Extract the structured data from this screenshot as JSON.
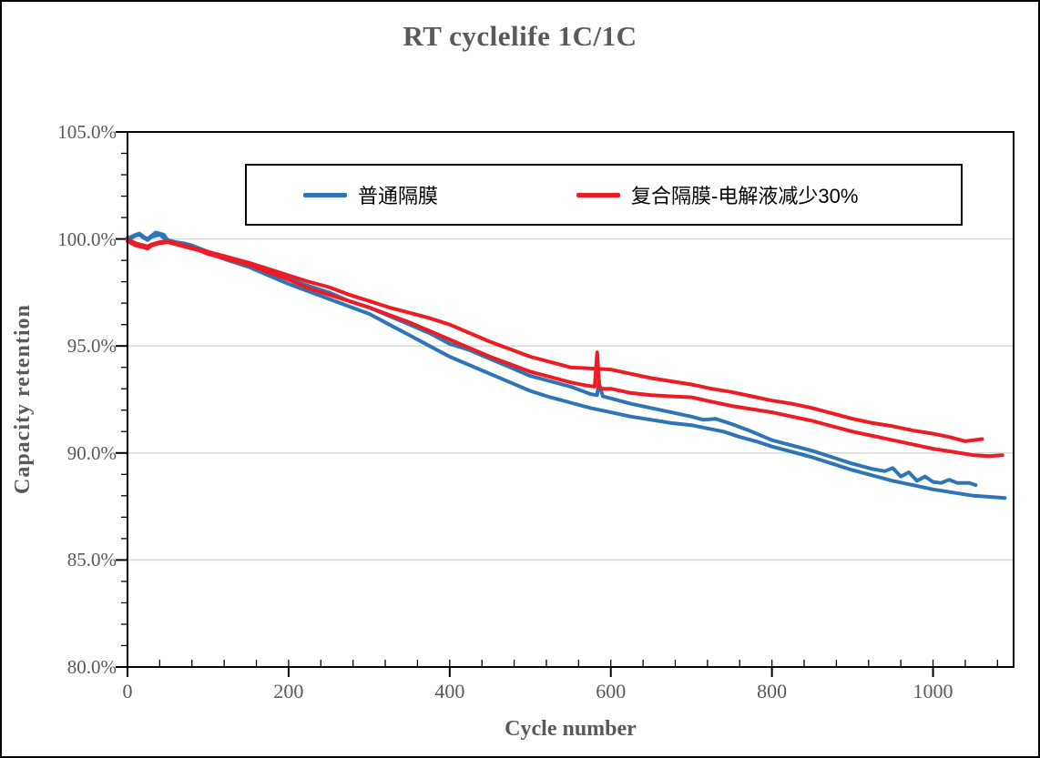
{
  "chart_data": {
    "type": "line",
    "title": "RT cyclelife 1C/1C",
    "xlabel": "Cycle number",
    "ylabel": "Capacity retention",
    "xlim": [
      0,
      1100
    ],
    "ylim": [
      80,
      105
    ],
    "x_major_ticks": [
      0,
      200,
      400,
      600,
      800,
      1000
    ],
    "x_tick_labels": [
      "0",
      "200",
      "400",
      "600",
      "800",
      "1000"
    ],
    "x_minor_step": 40,
    "y_major_ticks": [
      80,
      85,
      90,
      95,
      100,
      105
    ],
    "y_tick_labels": [
      "80.0%",
      "85.0%",
      "90.0%",
      "95.0%",
      "100.0%",
      "105.0%"
    ],
    "y_minor_step": 1,
    "grid": "horizontal-major-only",
    "gridline_color": "#d9d9d9",
    "axis_color": "#000000",
    "text_color": "#595959",
    "legend": {
      "position": "top-inside",
      "entries": [
        {
          "label": "普通隔膜",
          "color": "#2e75b6"
        },
        {
          "label": "复合隔膜-电解液减少30%",
          "color": "#ed1c24"
        }
      ]
    },
    "series": [
      {
        "id": "putong-gemo-cell1",
        "legend": "普通隔膜",
        "color": "#2e75b6",
        "x": [
          0,
          5,
          10,
          15,
          20,
          25,
          30,
          35,
          40,
          45,
          50,
          60,
          70,
          80,
          90,
          100,
          125,
          150,
          175,
          200,
          225,
          250,
          275,
          300,
          325,
          350,
          375,
          400,
          425,
          450,
          475,
          500,
          525,
          550,
          575,
          583,
          585,
          590,
          600,
          625,
          650,
          675,
          700,
          715,
          730,
          750,
          775,
          800,
          825,
          850,
          875,
          900,
          925,
          940,
          950,
          960,
          970,
          980,
          990,
          1000,
          1010,
          1020,
          1030,
          1045,
          1053
        ],
        "y": [
          100.05,
          100.1,
          100.2,
          100.25,
          100.1,
          100.0,
          100.15,
          100.3,
          100.25,
          100.2,
          99.95,
          99.85,
          99.8,
          99.7,
          99.55,
          99.4,
          99.1,
          98.8,
          98.5,
          98.15,
          97.8,
          97.5,
          97.1,
          96.8,
          96.4,
          96.0,
          95.6,
          95.1,
          94.8,
          94.4,
          94.0,
          93.6,
          93.35,
          93.1,
          92.75,
          92.7,
          93.3,
          92.65,
          92.55,
          92.3,
          92.1,
          91.9,
          91.7,
          91.55,
          91.6,
          91.35,
          91.0,
          90.6,
          90.35,
          90.1,
          89.8,
          89.5,
          89.25,
          89.15,
          89.3,
          88.9,
          89.1,
          88.7,
          88.9,
          88.65,
          88.6,
          88.75,
          88.6,
          88.6,
          88.5
        ]
      },
      {
        "id": "putong-gemo-cell2",
        "legend": "普通隔膜",
        "color": "#2e75b6",
        "x": [
          0,
          5,
          10,
          15,
          20,
          25,
          30,
          40,
          50,
          60,
          70,
          80,
          90,
          100,
          125,
          150,
          175,
          200,
          225,
          250,
          275,
          300,
          325,
          350,
          375,
          400,
          425,
          450,
          475,
          500,
          525,
          550,
          575,
          600,
          625,
          650,
          675,
          700,
          720,
          740,
          760,
          780,
          800,
          825,
          850,
          875,
          900,
          925,
          950,
          975,
          1000,
          1025,
          1050,
          1070,
          1089
        ],
        "y": [
          100.0,
          100.05,
          100.15,
          100.2,
          100.05,
          99.95,
          100.1,
          100.2,
          99.9,
          99.8,
          99.75,
          99.65,
          99.5,
          99.35,
          99.0,
          98.7,
          98.3,
          97.9,
          97.55,
          97.2,
          96.85,
          96.5,
          96.0,
          95.5,
          95.0,
          94.5,
          94.1,
          93.7,
          93.3,
          92.9,
          92.6,
          92.35,
          92.1,
          91.9,
          91.7,
          91.55,
          91.4,
          91.3,
          91.15,
          91.0,
          90.75,
          90.55,
          90.3,
          90.05,
          89.8,
          89.5,
          89.2,
          88.95,
          88.7,
          88.5,
          88.3,
          88.15,
          88.0,
          87.95,
          87.9
        ]
      },
      {
        "id": "fuhe-gemo-cell1",
        "legend": "复合隔膜-电解液减少30%",
        "color": "#ed1c24",
        "x": [
          0,
          5,
          10,
          15,
          20,
          25,
          30,
          40,
          50,
          60,
          70,
          80,
          90,
          100,
          125,
          150,
          175,
          200,
          225,
          250,
          275,
          300,
          325,
          350,
          375,
          400,
          425,
          450,
          475,
          500,
          525,
          550,
          575,
          600,
          625,
          650,
          675,
          700,
          725,
          750,
          775,
          800,
          825,
          850,
          875,
          900,
          925,
          950,
          975,
          1000,
          1020,
          1040,
          1061
        ],
        "y": [
          100.0,
          99.9,
          99.8,
          99.75,
          99.7,
          99.65,
          99.75,
          99.85,
          99.9,
          99.8,
          99.7,
          99.6,
          99.5,
          99.4,
          99.15,
          98.9,
          98.6,
          98.3,
          98.0,
          97.75,
          97.4,
          97.1,
          96.8,
          96.55,
          96.3,
          96.0,
          95.6,
          95.2,
          94.85,
          94.5,
          94.25,
          94.0,
          93.95,
          93.9,
          93.7,
          93.5,
          93.35,
          93.2,
          93.0,
          92.85,
          92.65,
          92.45,
          92.3,
          92.1,
          91.85,
          91.6,
          91.4,
          91.25,
          91.05,
          90.9,
          90.75,
          90.55,
          90.65
        ]
      },
      {
        "id": "fuhe-gemo-cell2",
        "legend": "复合隔膜-电解液减少30%",
        "color": "#ed1c24",
        "x": [
          0,
          5,
          10,
          15,
          20,
          25,
          30,
          40,
          50,
          60,
          70,
          80,
          90,
          100,
          125,
          150,
          175,
          200,
          225,
          250,
          275,
          300,
          325,
          350,
          375,
          400,
          425,
          450,
          475,
          500,
          525,
          550,
          570,
          580,
          583,
          586,
          590,
          600,
          625,
          650,
          675,
          700,
          725,
          750,
          775,
          800,
          825,
          850,
          875,
          900,
          925,
          950,
          975,
          1000,
          1025,
          1050,
          1070,
          1086
        ],
        "y": [
          99.9,
          99.8,
          99.7,
          99.65,
          99.6,
          99.55,
          99.7,
          99.8,
          99.85,
          99.75,
          99.65,
          99.55,
          99.45,
          99.3,
          99.05,
          98.8,
          98.45,
          98.1,
          97.7,
          97.4,
          97.1,
          96.8,
          96.45,
          96.1,
          95.7,
          95.3,
          94.9,
          94.5,
          94.15,
          93.8,
          93.55,
          93.3,
          93.15,
          93.1,
          94.7,
          93.05,
          93.0,
          93.0,
          92.8,
          92.7,
          92.65,
          92.6,
          92.4,
          92.2,
          92.05,
          91.9,
          91.7,
          91.5,
          91.25,
          91.0,
          90.8,
          90.6,
          90.4,
          90.2,
          90.05,
          89.9,
          89.85,
          89.9
        ]
      }
    ]
  }
}
